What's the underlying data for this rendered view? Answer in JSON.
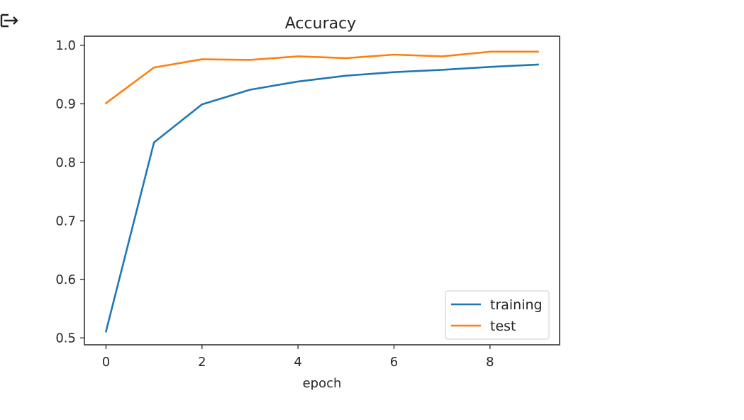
{
  "output_icon": "output-arrow-icon",
  "chart_data": {
    "type": "line",
    "title": "Accuracy",
    "xlabel": "epoch",
    "ylabel": "",
    "x": [
      0,
      1,
      2,
      3,
      4,
      5,
      6,
      7,
      8,
      9
    ],
    "xlim": [
      -0.45,
      9.45
    ],
    "ylim": [
      0.4882,
      1.0155
    ],
    "xticks": [
      0,
      2,
      4,
      6,
      8
    ],
    "xtick_labels": [
      "0",
      "2",
      "4",
      "6",
      "8"
    ],
    "yticks": [
      0.5,
      0.6,
      0.7,
      0.8,
      0.9,
      1.0
    ],
    "ytick_labels": [
      "0.5",
      "0.6",
      "0.7",
      "0.8",
      "0.9",
      "1.0"
    ],
    "grid": false,
    "legend_position": "lower-right",
    "series": [
      {
        "name": "training",
        "color": "#1f77b4",
        "values": [
          0.511,
          0.834,
          0.899,
          0.924,
          0.938,
          0.948,
          0.954,
          0.958,
          0.963,
          0.967
        ]
      },
      {
        "name": "test",
        "color": "#ff7f0e",
        "values": [
          0.901,
          0.962,
          0.976,
          0.975,
          0.981,
          0.978,
          0.984,
          0.981,
          0.989,
          0.989
        ]
      }
    ]
  }
}
